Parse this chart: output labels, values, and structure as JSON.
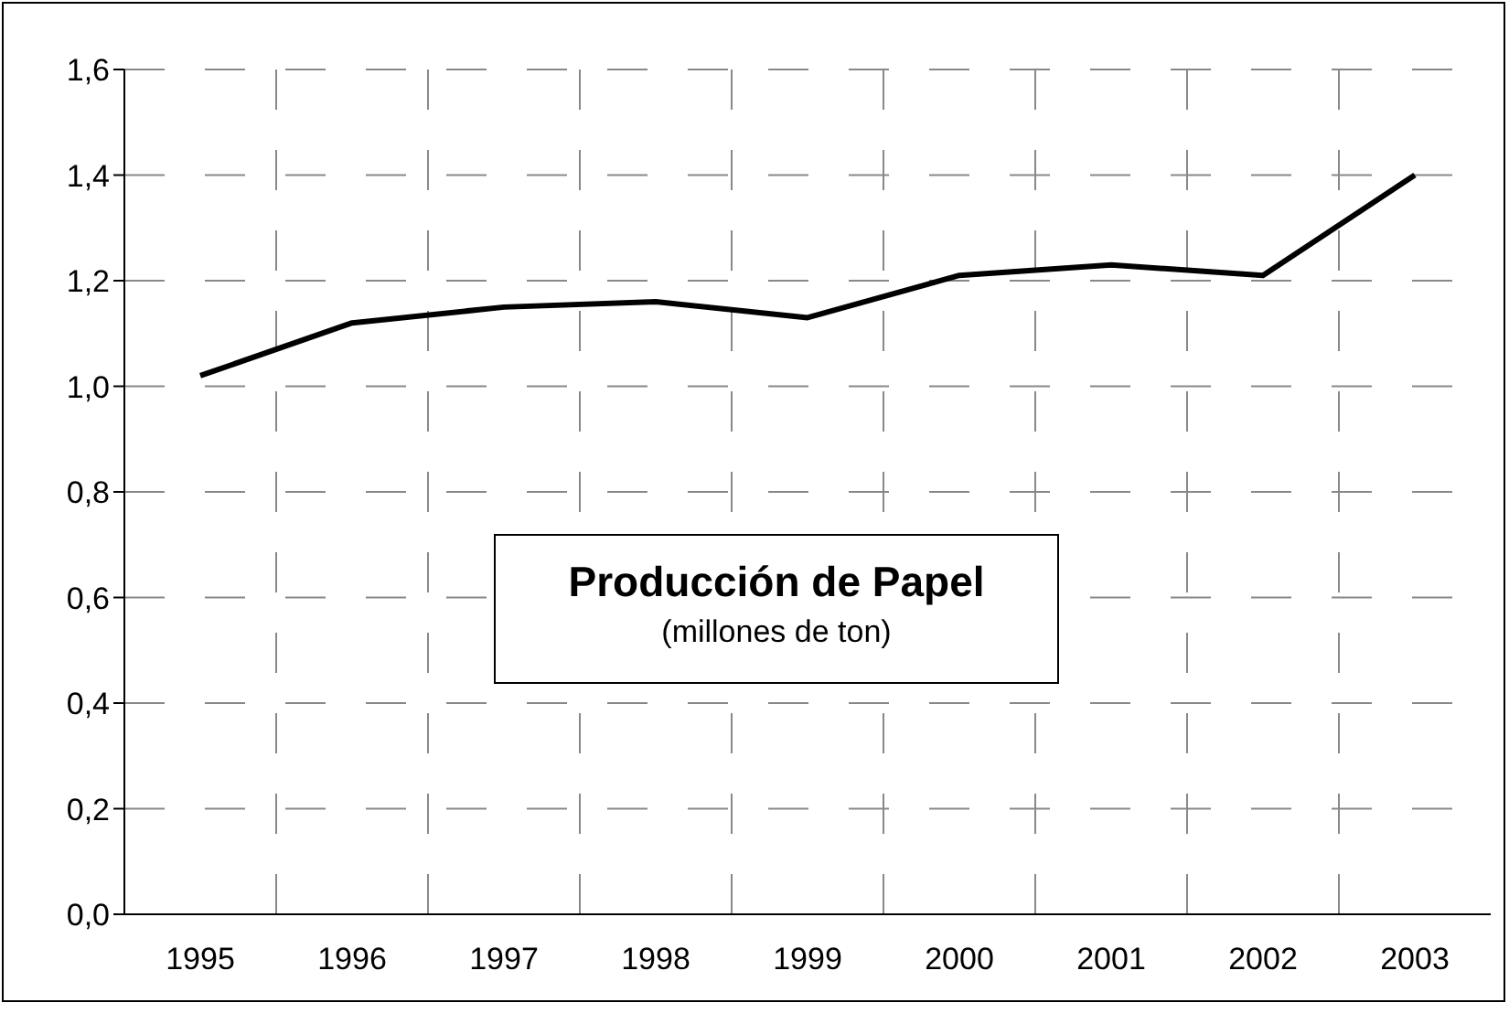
{
  "chart_data": {
    "type": "line",
    "title": "Producción de Papel",
    "subtitle": "(millones de ton)",
    "categories": [
      "1995",
      "1996",
      "1997",
      "1998",
      "1999",
      "2000",
      "2001",
      "2002",
      "2003"
    ],
    "series": [
      {
        "color": "#000000",
        "values": [
          1.02,
          1.12,
          1.15,
          1.16,
          1.13,
          1.21,
          1.23,
          1.21,
          1.4
        ]
      }
    ],
    "ylim": [
      0,
      1.6
    ],
    "yticks": [
      {
        "value": 0,
        "label": "0,0"
      },
      {
        "value": 0.2,
        "label": "0,2"
      },
      {
        "value": 0.4,
        "label": "0,4"
      },
      {
        "value": 0.6,
        "label": "0,6"
      },
      {
        "value": 0.8,
        "label": "0,8"
      },
      {
        "value": 1,
        "label": "1,0"
      },
      {
        "value": 1.2,
        "label": "1,2"
      },
      {
        "value": 1.4,
        "label": "1,4"
      },
      {
        "value": 1.6,
        "label": "1,6"
      }
    ],
    "grid": true,
    "marker": "none",
    "line_style": "solid"
  }
}
